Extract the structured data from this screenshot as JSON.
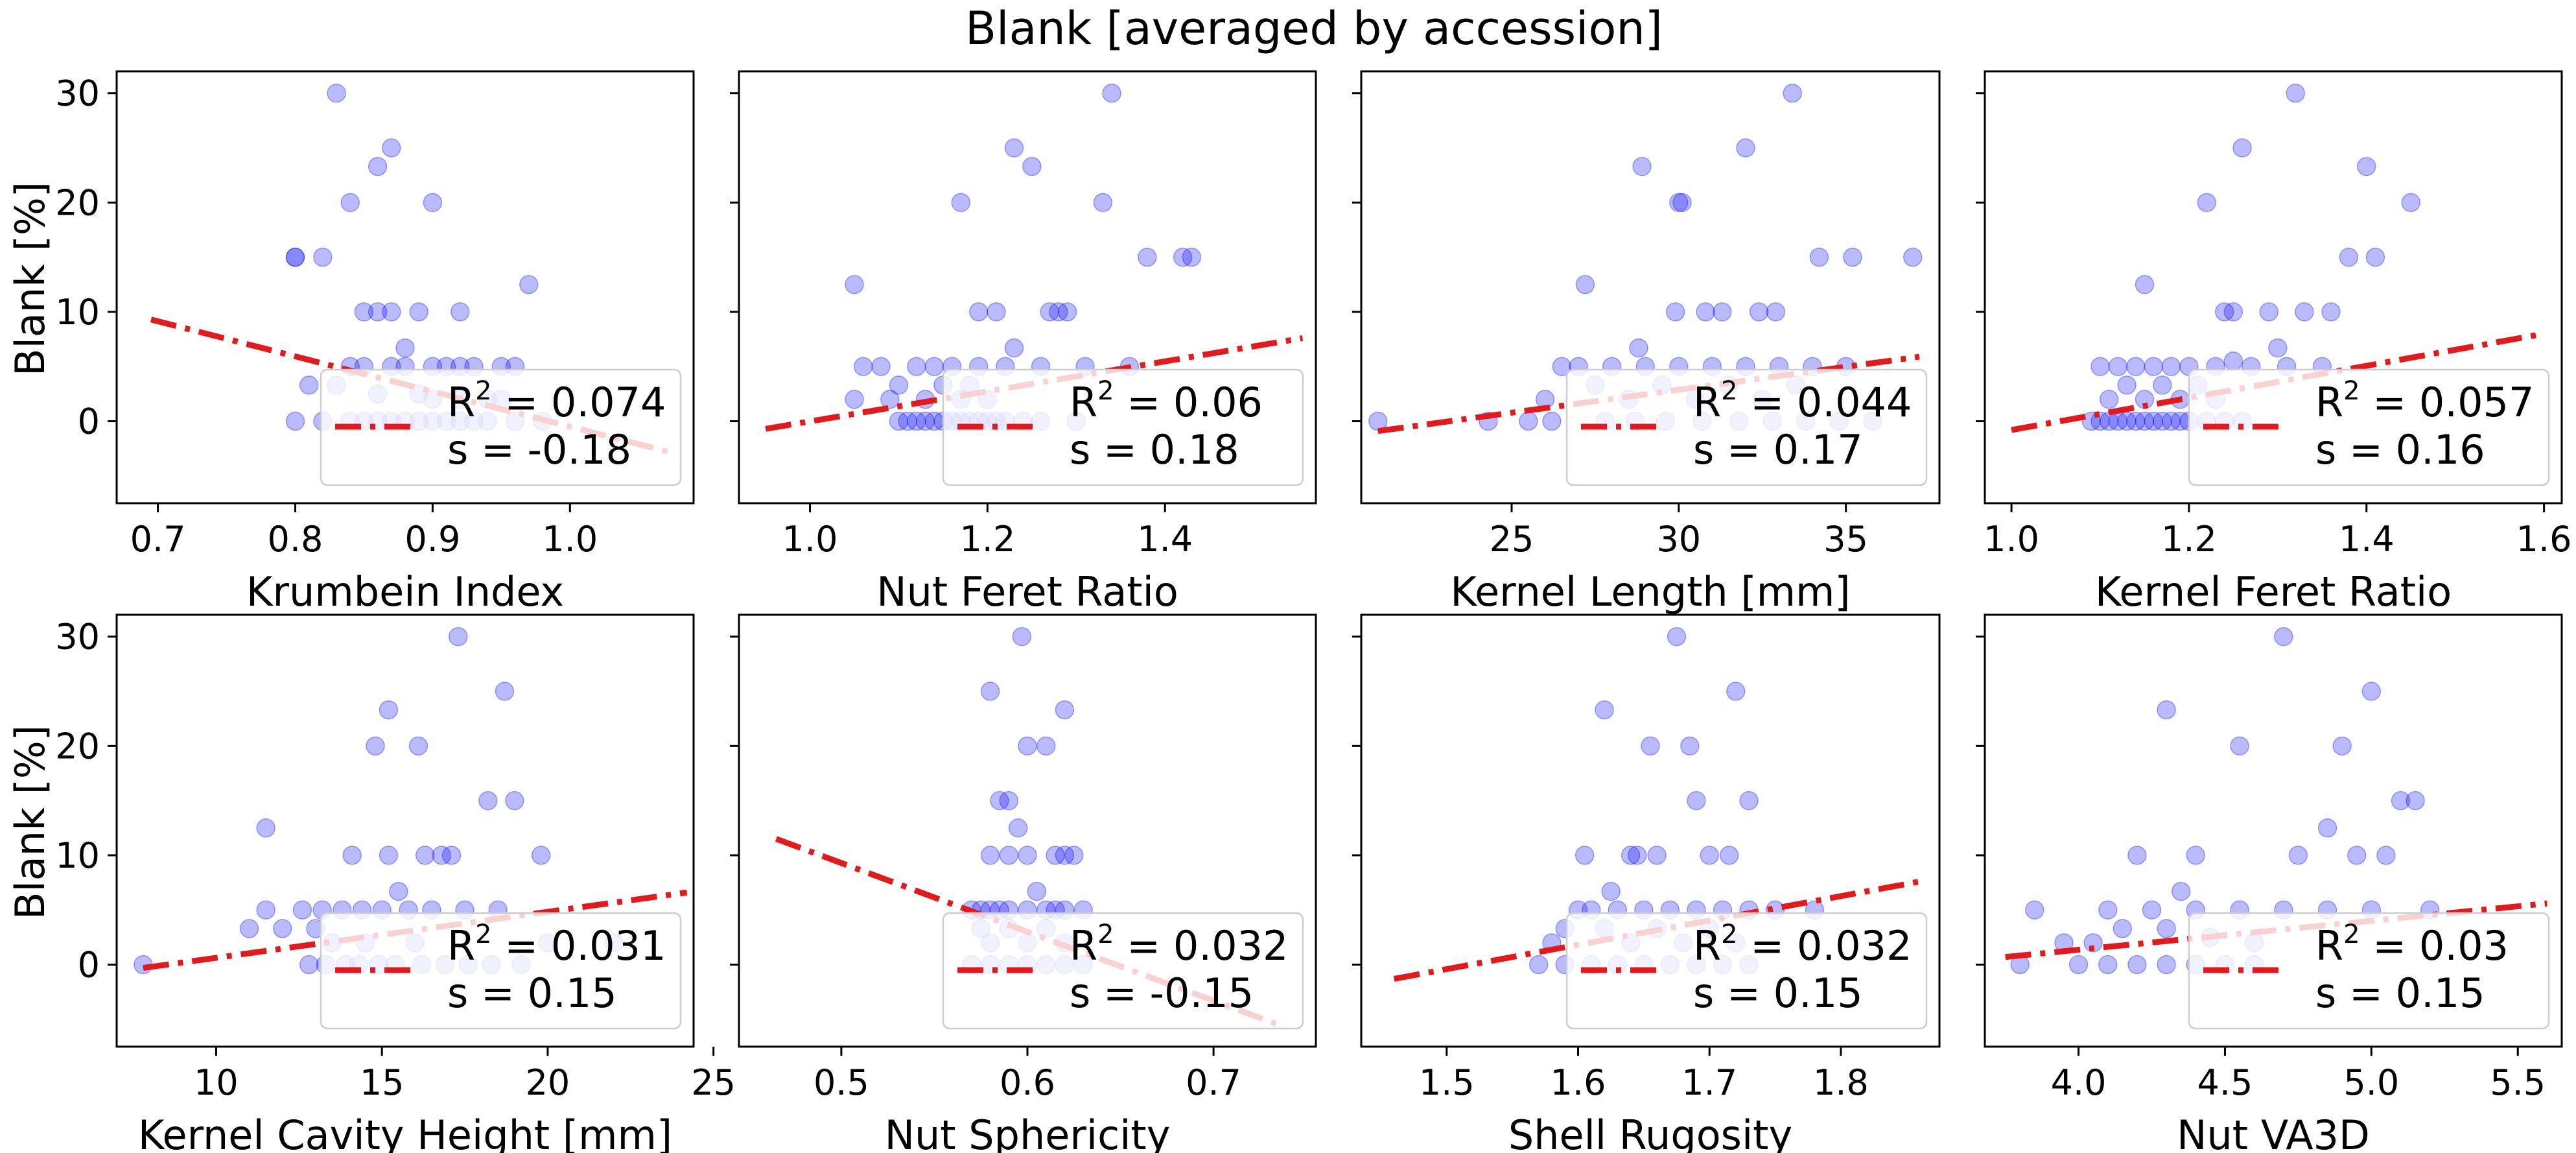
{
  "title": "Blank [averaged by accession]",
  "ylabel": "Blank [%]",
  "colors": {
    "points": "#0000ff",
    "trend": "#e31a1c",
    "legend_bg": "#ffffff"
  },
  "chart_data": [
    {
      "type": "scatter",
      "xlabel": "Krumbein Index",
      "ylabel": "Blank [%]",
      "xlim": [
        0.67,
        1.09
      ],
      "ylim": [
        -7.5,
        32
      ],
      "xticks": [
        0.7,
        0.8,
        0.9,
        1.0
      ],
      "xtick_labels": [
        "0.7",
        "0.8",
        "0.9",
        "1.0"
      ],
      "yticks": [
        0,
        10,
        20,
        30
      ],
      "ytick_labels": [
        "0",
        "10",
        "20",
        "30"
      ],
      "trend": {
        "x": [
          0.695,
          1.075
        ],
        "y": [
          9.3,
          -2.9
        ]
      },
      "legend": {
        "r2": "0.074",
        "s": "-0.18"
      },
      "x": [
        0.83,
        0.87,
        0.86,
        0.84,
        0.9,
        0.8,
        0.8,
        0.82,
        0.97,
        0.85,
        0.86,
        0.87,
        0.89,
        0.92,
        0.88,
        0.9,
        0.84,
        0.85,
        0.87,
        0.88,
        0.91,
        0.92,
        0.93,
        0.95,
        0.96,
        0.81,
        0.83,
        0.86,
        0.89,
        0.9,
        0.92,
        0.94,
        0.95,
        0.8,
        0.82,
        0.84,
        0.86,
        0.88,
        0.9,
        0.92,
        0.94,
        0.96,
        0.98,
        0.85,
        0.87,
        0.89,
        0.91,
        0.93
      ],
      "y": [
        30,
        25,
        23.3,
        20,
        20,
        15,
        15,
        15,
        12.5,
        10,
        10,
        10,
        10,
        10,
        6.7,
        5,
        5,
        5,
        5,
        5,
        5,
        5,
        5,
        5,
        5,
        3.3,
        3.3,
        2.5,
        2.5,
        2,
        2,
        2,
        2,
        0,
        0,
        0,
        0,
        0,
        0,
        0,
        0,
        0,
        0,
        0,
        0,
        0,
        0,
        0
      ]
    },
    {
      "type": "scatter",
      "xlabel": "Nut Feret Ratio",
      "xlim": [
        0.92,
        1.57
      ],
      "ylim": [
        -7.5,
        32
      ],
      "xticks": [
        1.0,
        1.2,
        1.4
      ],
      "xtick_labels": [
        "1.0",
        "1.2",
        "1.4"
      ],
      "yticks": [
        0,
        10,
        20,
        30
      ],
      "trend": {
        "x": [
          0.95,
          1.555
        ],
        "y": [
          -0.7,
          7.6
        ]
      },
      "legend": {
        "r2": "0.06",
        "s": "0.18"
      },
      "x": [
        1.34,
        1.23,
        1.25,
        1.17,
        1.33,
        1.38,
        1.42,
        1.43,
        1.05,
        1.19,
        1.21,
        1.27,
        1.28,
        1.29,
        1.23,
        1.06,
        1.08,
        1.12,
        1.14,
        1.16,
        1.19,
        1.22,
        1.26,
        1.31,
        1.36,
        1.1,
        1.15,
        1.18,
        1.05,
        1.09,
        1.13,
        1.17,
        1.2,
        1.1,
        1.11,
        1.12,
        1.13,
        1.14,
        1.15,
        1.16,
        1.17,
        1.18,
        1.19,
        1.2,
        1.21,
        1.22,
        1.24,
        1.26,
        1.3
      ],
      "y": [
        30,
        25,
        23.3,
        20,
        20,
        15,
        15,
        15,
        12.5,
        10,
        10,
        10,
        10,
        10,
        6.7,
        5,
        5,
        5,
        5,
        5,
        5,
        5,
        5,
        5,
        5,
        3.3,
        3.3,
        3.3,
        2,
        2,
        2,
        2,
        2,
        0,
        0,
        0,
        0,
        0,
        0,
        0,
        0,
        0,
        0,
        0,
        0,
        0,
        0,
        0,
        0
      ]
    },
    {
      "type": "scatter",
      "xlabel": "Kernel Length [mm]",
      "xlim": [
        20.5,
        37.8
      ],
      "ylim": [
        -7.5,
        32
      ],
      "xticks": [
        25,
        30,
        35
      ],
      "xtick_labels": [
        "25",
        "30",
        "35"
      ],
      "yticks": [
        0,
        10,
        20,
        30
      ],
      "trend": {
        "x": [
          21,
          37.2
        ],
        "y": [
          -0.9,
          5.9
        ]
      },
      "legend": {
        "r2": "0.044",
        "s": "0.17"
      },
      "x": [
        33.4,
        32.0,
        28.9,
        30.0,
        30.1,
        34.2,
        35.2,
        37.0,
        27.2,
        29.9,
        30.8,
        31.3,
        32.4,
        32.9,
        28.8,
        26.5,
        27.0,
        28.0,
        29.0,
        30.0,
        31.0,
        32.0,
        33.0,
        34.0,
        35.0,
        27.5,
        29.5,
        31.5,
        33.5,
        26.0,
        28.5,
        30.5,
        32.5,
        21.0,
        24.3,
        25.5,
        26.2,
        27.8,
        28.7,
        29.6,
        30.7,
        31.8,
        32.8,
        33.8,
        34.8,
        35.8
      ],
      "y": [
        30,
        25,
        23.3,
        20,
        20,
        15,
        15,
        15,
        12.5,
        10,
        10,
        10,
        10,
        10,
        6.7,
        5,
        5,
        5,
        5,
        5,
        5,
        5,
        5,
        5,
        5,
        3.3,
        3.3,
        3.3,
        3.3,
        2,
        2,
        2,
        2,
        0,
        0,
        0,
        0,
        0,
        0,
        0,
        0,
        0,
        0,
        0,
        0,
        0
      ]
    },
    {
      "type": "scatter",
      "xlabel": "Kernel Feret Ratio",
      "xlim": [
        0.97,
        1.62
      ],
      "ylim": [
        -7.5,
        32
      ],
      "xticks": [
        1.0,
        1.2,
        1.4,
        1.6
      ],
      "xtick_labels": [
        "1.0",
        "1.2",
        "1.4",
        "1.6"
      ],
      "yticks": [
        0,
        10,
        20,
        30
      ],
      "trend": {
        "x": [
          1.0,
          1.6
        ],
        "y": [
          -0.8,
          8.0
        ]
      },
      "legend": {
        "r2": "0.057",
        "s": "0.16"
      },
      "x": [
        1.32,
        1.26,
        1.4,
        1.22,
        1.45,
        1.38,
        1.41,
        1.15,
        1.24,
        1.25,
        1.29,
        1.33,
        1.36,
        1.3,
        1.25,
        1.1,
        1.12,
        1.14,
        1.16,
        1.18,
        1.2,
        1.23,
        1.27,
        1.31,
        1.35,
        1.13,
        1.17,
        1.21,
        1.11,
        1.15,
        1.19,
        1.23,
        1.09,
        1.1,
        1.11,
        1.12,
        1.13,
        1.14,
        1.15,
        1.16,
        1.17,
        1.18,
        1.19,
        1.2,
        1.22,
        1.24,
        1.26
      ],
      "y": [
        30,
        25,
        23.3,
        20,
        20,
        15,
        15,
        12.5,
        10,
        10,
        10,
        10,
        10,
        6.7,
        5.5,
        5,
        5,
        5,
        5,
        5,
        5,
        5,
        5,
        5,
        5,
        3.3,
        3.3,
        3.3,
        2,
        2,
        2,
        2,
        0,
        0,
        0,
        0,
        0,
        0,
        0,
        0,
        0,
        0,
        0,
        0,
        0,
        0,
        0
      ]
    },
    {
      "type": "scatter",
      "xlabel": "Kernel Cavity Height [mm]",
      "xlim": [
        7.0,
        24.4
      ],
      "ylim": [
        -7.5,
        32
      ],
      "xticks": [
        10,
        15,
        20,
        25
      ],
      "xtick_labels": [
        "10",
        "15",
        "20",
        "25"
      ],
      "yticks": [
        0,
        10,
        20,
        30
      ],
      "trend": {
        "x": [
          7.8,
          24.2
        ],
        "y": [
          -0.3,
          6.6
        ]
      },
      "legend": {
        "r2": "0.031",
        "s": "0.15"
      },
      "x": [
        17.3,
        18.7,
        15.2,
        14.8,
        16.1,
        18.2,
        19.0,
        11.5,
        14.1,
        15.2,
        16.3,
        16.8,
        17.1,
        19.8,
        15.5,
        11.5,
        12.6,
        13.2,
        13.8,
        14.4,
        15.0,
        15.8,
        16.5,
        17.5,
        18.5,
        11.0,
        12.0,
        13.0,
        13.5,
        14.5,
        16.0,
        20.0,
        22.0,
        7.8,
        12.8,
        13.3,
        13.9,
        14.3,
        14.9,
        15.4,
        16.2,
        16.9,
        17.6,
        18.3,
        19.2
      ],
      "y": [
        30,
        25,
        23.3,
        20,
        20,
        15,
        15,
        12.5,
        10,
        10,
        10,
        10,
        10,
        10,
        6.7,
        5,
        5,
        5,
        5,
        5,
        5,
        5,
        5,
        5,
        5,
        3.3,
        3.3,
        3.3,
        2,
        2,
        2,
        2,
        2,
        0,
        0,
        0,
        0,
        0,
        0,
        0,
        0,
        0,
        0,
        0,
        0
      ]
    },
    {
      "type": "scatter",
      "xlabel": "Nut Sphericity",
      "xlim": [
        0.445,
        0.755
      ],
      "ylim": [
        -7.5,
        32
      ],
      "xticks": [
        0.5,
        0.6,
        0.7
      ],
      "xtick_labels": [
        "0.5",
        "0.6",
        "0.7"
      ],
      "yticks": [
        0,
        10,
        20,
        30
      ],
      "trend": {
        "x": [
          0.465,
          0.735
        ],
        "y": [
          11.5,
          -5.5
        ]
      },
      "legend": {
        "r2": "0.032",
        "s": "-0.15"
      },
      "x": [
        0.597,
        0.58,
        0.62,
        0.6,
        0.61,
        0.585,
        0.59,
        0.595,
        0.58,
        0.59,
        0.6,
        0.615,
        0.62,
        0.625,
        0.605,
        0.57,
        0.575,
        0.58,
        0.585,
        0.59,
        0.6,
        0.61,
        0.615,
        0.62,
        0.63,
        0.575,
        0.59,
        0.61,
        0.58,
        0.6,
        0.62,
        0.57,
        0.58,
        0.59,
        0.6,
        0.61,
        0.62,
        0.63
      ],
      "y": [
        30,
        25,
        23.3,
        20,
        20,
        15,
        15,
        12.5,
        10,
        10,
        10,
        10,
        10,
        10,
        6.7,
        5,
        5,
        5,
        5,
        5,
        5,
        5,
        5,
        5,
        5,
        3.3,
        3.3,
        3.3,
        2,
        2,
        2,
        0,
        0,
        0,
        0,
        0,
        0,
        0
      ]
    },
    {
      "type": "scatter",
      "xlabel": "Shell Rugosity",
      "xlim": [
        1.435,
        1.875
      ],
      "ylim": [
        -7.5,
        32
      ],
      "xticks": [
        1.5,
        1.6,
        1.7,
        1.8
      ],
      "xtick_labels": [
        "1.5",
        "1.6",
        "1.7",
        "1.8"
      ],
      "yticks": [
        0,
        10,
        20,
        30
      ],
      "trend": {
        "x": [
          1.46,
          1.86
        ],
        "y": [
          -1.3,
          7.6
        ]
      },
      "legend": {
        "r2": "0.032",
        "s": "0.15"
      },
      "x": [
        1.675,
        1.72,
        1.62,
        1.655,
        1.685,
        1.69,
        1.73,
        1.605,
        1.64,
        1.645,
        1.66,
        1.7,
        1.715,
        1.625,
        1.6,
        1.61,
        1.63,
        1.65,
        1.67,
        1.69,
        1.71,
        1.73,
        1.75,
        1.78,
        1.59,
        1.62,
        1.66,
        1.7,
        1.58,
        1.64,
        1.68,
        1.72,
        1.57,
        1.59,
        1.61,
        1.63,
        1.65,
        1.67,
        1.69,
        1.71,
        1.73
      ],
      "y": [
        30,
        25,
        23.3,
        20,
        20,
        15,
        15,
        10,
        10,
        10,
        10,
        10,
        10,
        6.7,
        5,
        5,
        5,
        5,
        5,
        5,
        5,
        5,
        5,
        5,
        3.3,
        3.3,
        3.3,
        3.3,
        2,
        2,
        2,
        2,
        0,
        0,
        0,
        0,
        0,
        0,
        0,
        0,
        0
      ]
    },
    {
      "type": "scatter",
      "xlabel": "Nut VA3D",
      "xlim": [
        3.68,
        5.65
      ],
      "ylim": [
        -7.5,
        32
      ],
      "xticks": [
        4.0,
        4.5,
        5.0,
        5.5
      ],
      "xtick_labels": [
        "4.0",
        "4.5",
        "5.0",
        "5.5"
      ],
      "yticks": [
        0,
        10,
        20,
        30
      ],
      "trend": {
        "x": [
          3.75,
          5.6
        ],
        "y": [
          0.7,
          5.6
        ]
      },
      "legend": {
        "r2": "0.03",
        "s": "0.15"
      },
      "x": [
        4.7,
        5.0,
        4.3,
        4.55,
        4.9,
        5.1,
        5.15,
        4.85,
        4.2,
        4.4,
        4.75,
        4.95,
        5.05,
        4.35,
        3.85,
        4.1,
        4.25,
        4.4,
        4.55,
        4.7,
        4.85,
        5.0,
        5.2,
        4.3,
        4.15,
        4.45,
        3.95,
        4.05,
        4.6,
        3.8,
        4.0,
        4.1,
        4.2,
        4.3,
        4.4,
        4.5,
        4.6
      ],
      "y": [
        30,
        25,
        23.3,
        20,
        20,
        15,
        15,
        12.5,
        10,
        10,
        10,
        10,
        10,
        6.7,
        5,
        5,
        5,
        5,
        5,
        5,
        5,
        5,
        5,
        3.3,
        3.3,
        2.5,
        2,
        2,
        2,
        0,
        0,
        0,
        0,
        0,
        0,
        0,
        0
      ]
    }
  ]
}
